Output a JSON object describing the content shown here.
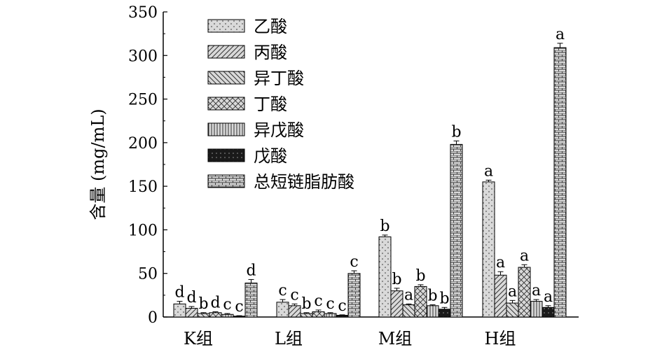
{
  "chart_data": {
    "type": "bar",
    "xlabel": "",
    "ylabel": "含量 (mg/mL)",
    "ylim": [
      0,
      350
    ],
    "yticks": [
      "0",
      "50",
      "100",
      "150",
      "200",
      "250",
      "300",
      "350"
    ],
    "categories": [
      "K组",
      "L组",
      "M组",
      "H组"
    ],
    "legend_position": "top-left",
    "series": [
      {
        "name": "乙酸",
        "pattern": "dots",
        "values": [
          15,
          17,
          92,
          155
        ],
        "errors": [
          3,
          3,
          2,
          2
        ],
        "labels": [
          "d",
          "c",
          "b",
          "a"
        ]
      },
      {
        "name": "丙酸",
        "pattern": "diag-up",
        "values": [
          10,
          13,
          30,
          48
        ],
        "errors": [
          2,
          2,
          3,
          4
        ],
        "labels": [
          "d",
          "c",
          "b",
          "a"
        ]
      },
      {
        "name": "异丁酸",
        "pattern": "diag-down",
        "values": [
          4,
          4,
          14,
          16
        ],
        "errors": [
          1,
          1,
          1,
          3
        ],
        "labels": [
          "b",
          "b",
          "a",
          "a"
        ]
      },
      {
        "name": "丁酸",
        "pattern": "crosshatch",
        "values": [
          5,
          6,
          35,
          57
        ],
        "errors": [
          1,
          2,
          2,
          3
        ],
        "labels": [
          "d",
          "c",
          "b",
          "a"
        ]
      },
      {
        "name": "异戊酸",
        "pattern": "vertical",
        "values": [
          3,
          4,
          13,
          18
        ],
        "errors": [
          1,
          1,
          1,
          2
        ],
        "labels": [
          "c",
          "c",
          "b",
          "a"
        ]
      },
      {
        "name": "戊酸",
        "pattern": "black-dots",
        "values": [
          1,
          2,
          9,
          11
        ],
        "errors": [
          0.5,
          0.5,
          2,
          2
        ],
        "labels": [
          "c",
          "c",
          "b",
          "a"
        ]
      },
      {
        "name": "总短链脂肪酸",
        "pattern": "brick",
        "values": [
          39,
          50,
          198,
          309
        ],
        "errors": [
          4,
          3,
          4,
          5
        ],
        "labels": [
          "d",
          "c",
          "b",
          "a"
        ]
      }
    ]
  }
}
